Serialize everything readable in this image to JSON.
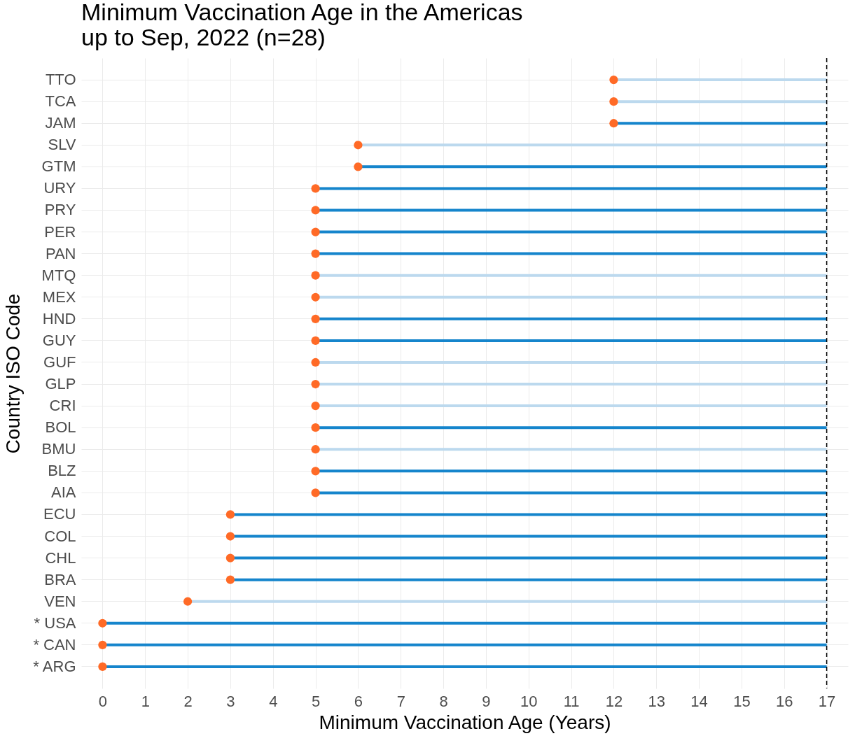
{
  "chart_data": {
    "type": "bar",
    "orientation": "horizontal",
    "title": "Minimum Vaccination Age in the Americas\nup to Sep, 2022 (n=28)",
    "xlabel": "Minimum Vaccination Age (Years)",
    "ylabel": "Country ISO Code",
    "categories": [
      "TTO",
      "TCA",
      "JAM",
      "SLV",
      "GTM",
      "URY",
      "PRY",
      "PER",
      "PAN",
      "MTQ",
      "MEX",
      "HND",
      "GUY",
      "GUF",
      "GLP",
      "CRI",
      "BOL",
      "BMU",
      "BLZ",
      "AIA",
      "ECU",
      "COL",
      "CHL",
      "BRA",
      "VEN",
      "* USA",
      "* CAN",
      "* ARG"
    ],
    "series": [
      {
        "base": [
          12,
          12,
          12,
          6,
          6,
          5,
          5,
          5,
          5,
          5,
          5,
          5,
          5,
          5,
          5,
          5,
          5,
          5,
          5,
          5,
          3,
          3,
          3,
          3,
          2,
          0,
          0,
          0
        ],
        "values": [
          5,
          5,
          5,
          11,
          11,
          12,
          12,
          12,
          12,
          12,
          12,
          12,
          12,
          12,
          12,
          12,
          12,
          12,
          12,
          12,
          14,
          14,
          14,
          14,
          15,
          17,
          17,
          17
        ],
        "colors": [
          "#bcd9ee",
          "#bcd9ee",
          "#1585cc",
          "#bcd9ee",
          "#1585cc",
          "#1585cc",
          "#1585cc",
          "#1585cc",
          "#1585cc",
          "#bcd9ee",
          "#bcd9ee",
          "#1585cc",
          "#1585cc",
          "#bcd9ee",
          "#bcd9ee",
          "#bcd9ee",
          "#1585cc",
          "#bcd9ee",
          "#1585cc",
          "#1585cc",
          "#1585cc",
          "#1585cc",
          "#1585cc",
          "#1585cc",
          "#bcd9ee",
          "#1585cc",
          "#1585cc",
          "#1585cc"
        ]
      },
      {
        "type": "scatter",
        "color": "#ff6a26",
        "marker": "circle",
        "values": [
          12,
          12,
          12,
          6,
          6,
          5,
          5,
          5,
          5,
          5,
          5,
          5,
          5,
          5,
          5,
          5,
          5,
          5,
          5,
          5,
          3,
          3,
          3,
          3,
          2,
          0,
          0,
          0
        ]
      }
    ],
    "xlim": [
      -0.5,
      17.5
    ],
    "xticks": [
      0,
      1,
      2,
      3,
      4,
      5,
      6,
      7,
      8,
      9,
      10,
      11,
      12,
      13,
      14,
      15,
      16,
      17
    ],
    "ref_lines": [
      {
        "axis": "x",
        "value": 17,
        "color": "#000000",
        "line_style": "dashed"
      }
    ],
    "grid": true
  }
}
